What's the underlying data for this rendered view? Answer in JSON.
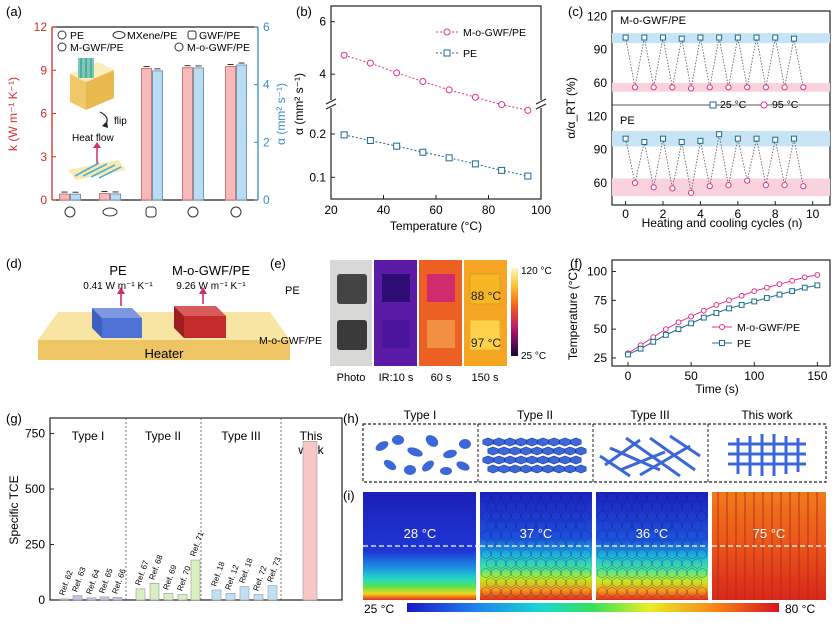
{
  "chart_data": [
    {
      "panel": "(a)",
      "type": "bar",
      "series": [
        {
          "name": "k",
          "values": [
            0.41,
            0.45,
            9.12,
            9.18,
            9.26
          ]
        },
        {
          "name": "α",
          "values": [
            0.2,
            0.21,
            4.48,
            4.58,
            4.68
          ]
        }
      ],
      "ylabel_left": "k (W m⁻¹ K⁻¹)",
      "ylabel_right": "α (mm² s⁻¹)",
      "ylim_left": [
        0,
        12
      ],
      "ylim_right": [
        0,
        6
      ],
      "yticks_left": [
        "0",
        "3",
        "6",
        "9",
        "12"
      ],
      "yticks_right": [
        "0",
        "2",
        "4",
        "6"
      ],
      "legend": [
        "PE",
        "MXene/PE",
        "GWF/PE",
        "M-GWF/PE",
        "M-o-GWF/PE"
      ],
      "annotations": [
        "flip",
        "Heat flow"
      ],
      "colors": {
        "k": "#f7b9b9",
        "alpha": "#b7dcf4",
        "left_axis": "#d62d2d",
        "right_axis": "#3a8dc4"
      }
    },
    {
      "panel": "(b)",
      "type": "line",
      "xlabel": "Temperature (°C)",
      "ylabel": "α (mm² s⁻¹)",
      "x": [
        25,
        35,
        45,
        55,
        65,
        75,
        85,
        95
      ],
      "xticks": [
        "20",
        "40",
        "60",
        "80",
        "100"
      ],
      "yticks_upper": [
        "4",
        "6"
      ],
      "yticks_lower": [
        "0.1",
        "0.2"
      ],
      "series": [
        {
          "name": "M-o-GWF/PE",
          "values": [
            4.72,
            4.42,
            4.05,
            3.72,
            3.4,
            3.12,
            2.84,
            2.62
          ]
        },
        {
          "name": "PE",
          "values": [
            0.198,
            0.185,
            0.172,
            0.158,
            0.145,
            0.131,
            0.116,
            0.103
          ]
        }
      ],
      "colors": {
        "mogwf": "#e0338a",
        "pe": "#1c6c8e"
      }
    },
    {
      "panel": "(c)",
      "type": "scatter",
      "xlabel": "Heating and cooling cycles (n)",
      "ylabel": "α/α_RT (%)",
      "xticks": [
        "0",
        "2",
        "4",
        "6",
        "8",
        "10"
      ],
      "yticks_top": [
        "60",
        "90",
        "120"
      ],
      "yticks_bottom": [
        "60",
        "90",
        "120"
      ],
      "top_title": "M-o-GWF/PE",
      "bottom_title": "PE",
      "legend": [
        "25 °C",
        "95 °C"
      ],
      "top": {
        "x25": [
          0,
          1,
          2,
          3,
          4,
          5,
          6,
          7,
          8,
          9
        ],
        "y25": [
          101,
          101,
          101,
          100,
          101,
          101,
          101,
          101,
          101,
          100
        ],
        "x95": [
          0.5,
          1.5,
          2.5,
          3.5,
          4.5,
          5.5,
          6.5,
          7.5,
          8.5,
          9.5
        ],
        "y95": [
          56,
          56,
          56,
          55,
          56,
          56,
          56,
          56,
          56,
          56
        ]
      },
      "bottom": {
        "x25": [
          0,
          1,
          2,
          3,
          4,
          5,
          6,
          7,
          8,
          9
        ],
        "y25": [
          100,
          97,
          100,
          97,
          98,
          104,
          100,
          100,
          99,
          100
        ],
        "x95": [
          0.5,
          1.5,
          2.5,
          3.5,
          4.5,
          5.5,
          6.5,
          7.5,
          8.5,
          9.5
        ],
        "y95": [
          60,
          56,
          55,
          51,
          57,
          58,
          62,
          58,
          58,
          57
        ]
      },
      "colors": {
        "c25": "#1c6c8e",
        "c95": "#e0338a",
        "band_blue": "#c6e4f5",
        "band_pink": "#f8d3dd"
      }
    },
    {
      "panel": "(f)",
      "type": "line",
      "xlabel": "Time (s)",
      "ylabel": "Temperature (°C)",
      "xticks": [
        "0",
        "50",
        "100",
        "150"
      ],
      "yticks": [
        "25",
        "50",
        "75",
        "100"
      ],
      "x": [
        0,
        10,
        20,
        30,
        40,
        50,
        60,
        70,
        80,
        90,
        100,
        110,
        120,
        130,
        140,
        150
      ],
      "series": [
        {
          "name": "M-o-GWF/PE",
          "values": [
            29,
            36,
            43,
            50,
            56,
            61,
            66,
            71,
            75,
            79,
            83,
            86,
            89,
            92,
            95,
            97
          ]
        },
        {
          "name": "PE",
          "values": [
            28,
            33,
            39,
            45,
            50,
            55,
            60,
            64,
            68,
            71,
            74,
            77,
            80,
            83,
            86,
            88
          ]
        }
      ]
    },
    {
      "panel": "(g)",
      "type": "bar",
      "ylabel": "Specific TCE",
      "yticks": [
        "0",
        "250",
        "500",
        "750"
      ],
      "groups": [
        "Type I",
        "Type II",
        "Type III",
        "This work"
      ],
      "categories": [
        "Ref. 62",
        "Ref. 63",
        "Ref. 64",
        "Ref. 65",
        "Ref. 66",
        "Ref. 67",
        "Ref. 68",
        "Ref. 69",
        "Ref. 70",
        "Ref. 71",
        "Ref. 18",
        "Ref. 12",
        "Ref. 18",
        "Ref. 72",
        "Ref. 73",
        ""
      ],
      "values": [
        5,
        20,
        10,
        14,
        12,
        50,
        75,
        30,
        25,
        180,
        45,
        30,
        60,
        25,
        65,
        715
      ],
      "colors": {
        "type1": "#cdbde8",
        "type2": "#d8f0c0",
        "type3": "#bfe0f5",
        "this": "#f9c6c6"
      }
    }
  ],
  "panels": {
    "a": "(a)",
    "b": "(b)",
    "c": "(c)",
    "d": "(d)",
    "e": "(e)",
    "f": "(f)",
    "g": "(g)",
    "h": "(h)",
    "i": "(i)"
  },
  "a_cat_icons": [
    "PE",
    "MXene/PE",
    "GWF/PE",
    "M-GWF/PE",
    "M-o-GWF/PE"
  ],
  "d": {
    "pe_label": "PE",
    "pe_value": "0.41 W m⁻¹ K⁻¹",
    "mo_label": "M-o-GWF/PE",
    "mo_value": "9.26 W m⁻¹ K⁻¹",
    "heater": "Heater"
  },
  "e": {
    "row1": "PE",
    "row2": "M-o-GWF/PE",
    "col_labels": [
      "Photo",
      "IR:10 s",
      "60 s",
      "150 s"
    ],
    "temp_top": "88 °C",
    "temp_bottom": "97 °C",
    "scale_max": "120 °C",
    "scale_min": "25 °C"
  },
  "h": {
    "labels": [
      "Type I",
      "Type II",
      "Type III",
      "This work"
    ]
  },
  "i": {
    "temps": [
      "28 °C",
      "37 °C",
      "36 °C",
      "75 °C"
    ],
    "scale_min": "25 °C",
    "scale_max": "80 °C"
  }
}
